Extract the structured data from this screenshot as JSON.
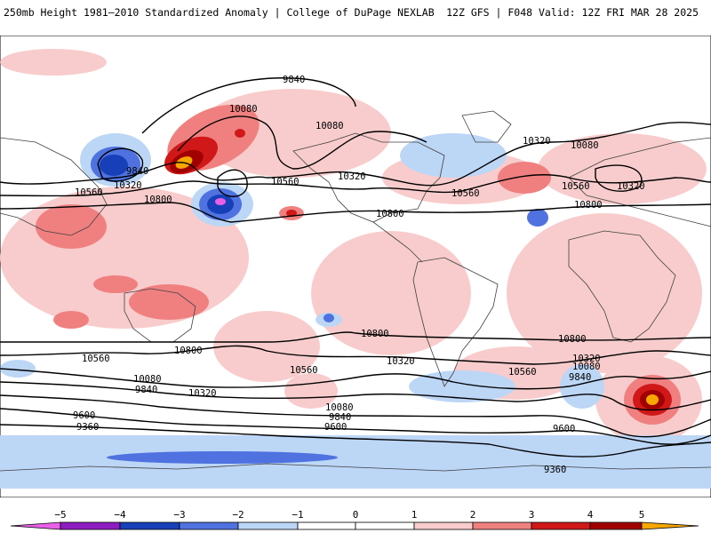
{
  "header": {
    "left_title": "250mb Height 1981–2010 Standardized Anomaly | College of DuPage NEXLAB",
    "right_title": "12Z GFS | F048 Valid: 12Z FRI MAR 28 2025"
  },
  "colors": {
    "neg5": "#e860e8",
    "neg4": "#8e1cc0",
    "neg3": "#1740b8",
    "neg2": "#4f72e0",
    "neg1": "#bcd6f6",
    "zero": "#ffffff",
    "pos1": "#f8cccc",
    "pos2": "#f08080",
    "pos3": "#d01818",
    "pos4": "#a00000",
    "pos5": "#f7a800",
    "land_outline": "#404040",
    "contour": "#000000"
  },
  "scale": {
    "ticks": [
      "−5",
      "−4",
      "−3",
      "−2",
      "−1",
      "0",
      "1",
      "2",
      "3",
      "4",
      "5"
    ]
  },
  "contour_labels": [
    "9840",
    "10080",
    "10080",
    "9840",
    "10320",
    "10080",
    "10320",
    "10560",
    "10800",
    "10560",
    "10320",
    "10560",
    "10560",
    "10800",
    "10800",
    "10320",
    "10800",
    "10800",
    "10800",
    "10560",
    "10320",
    "10560",
    "10560",
    "10080",
    "9840",
    "10320",
    "9600",
    "9360",
    "10080",
    "9840",
    "9600",
    "10320",
    "10080",
    "9840",
    "9600",
    "9360"
  ]
}
